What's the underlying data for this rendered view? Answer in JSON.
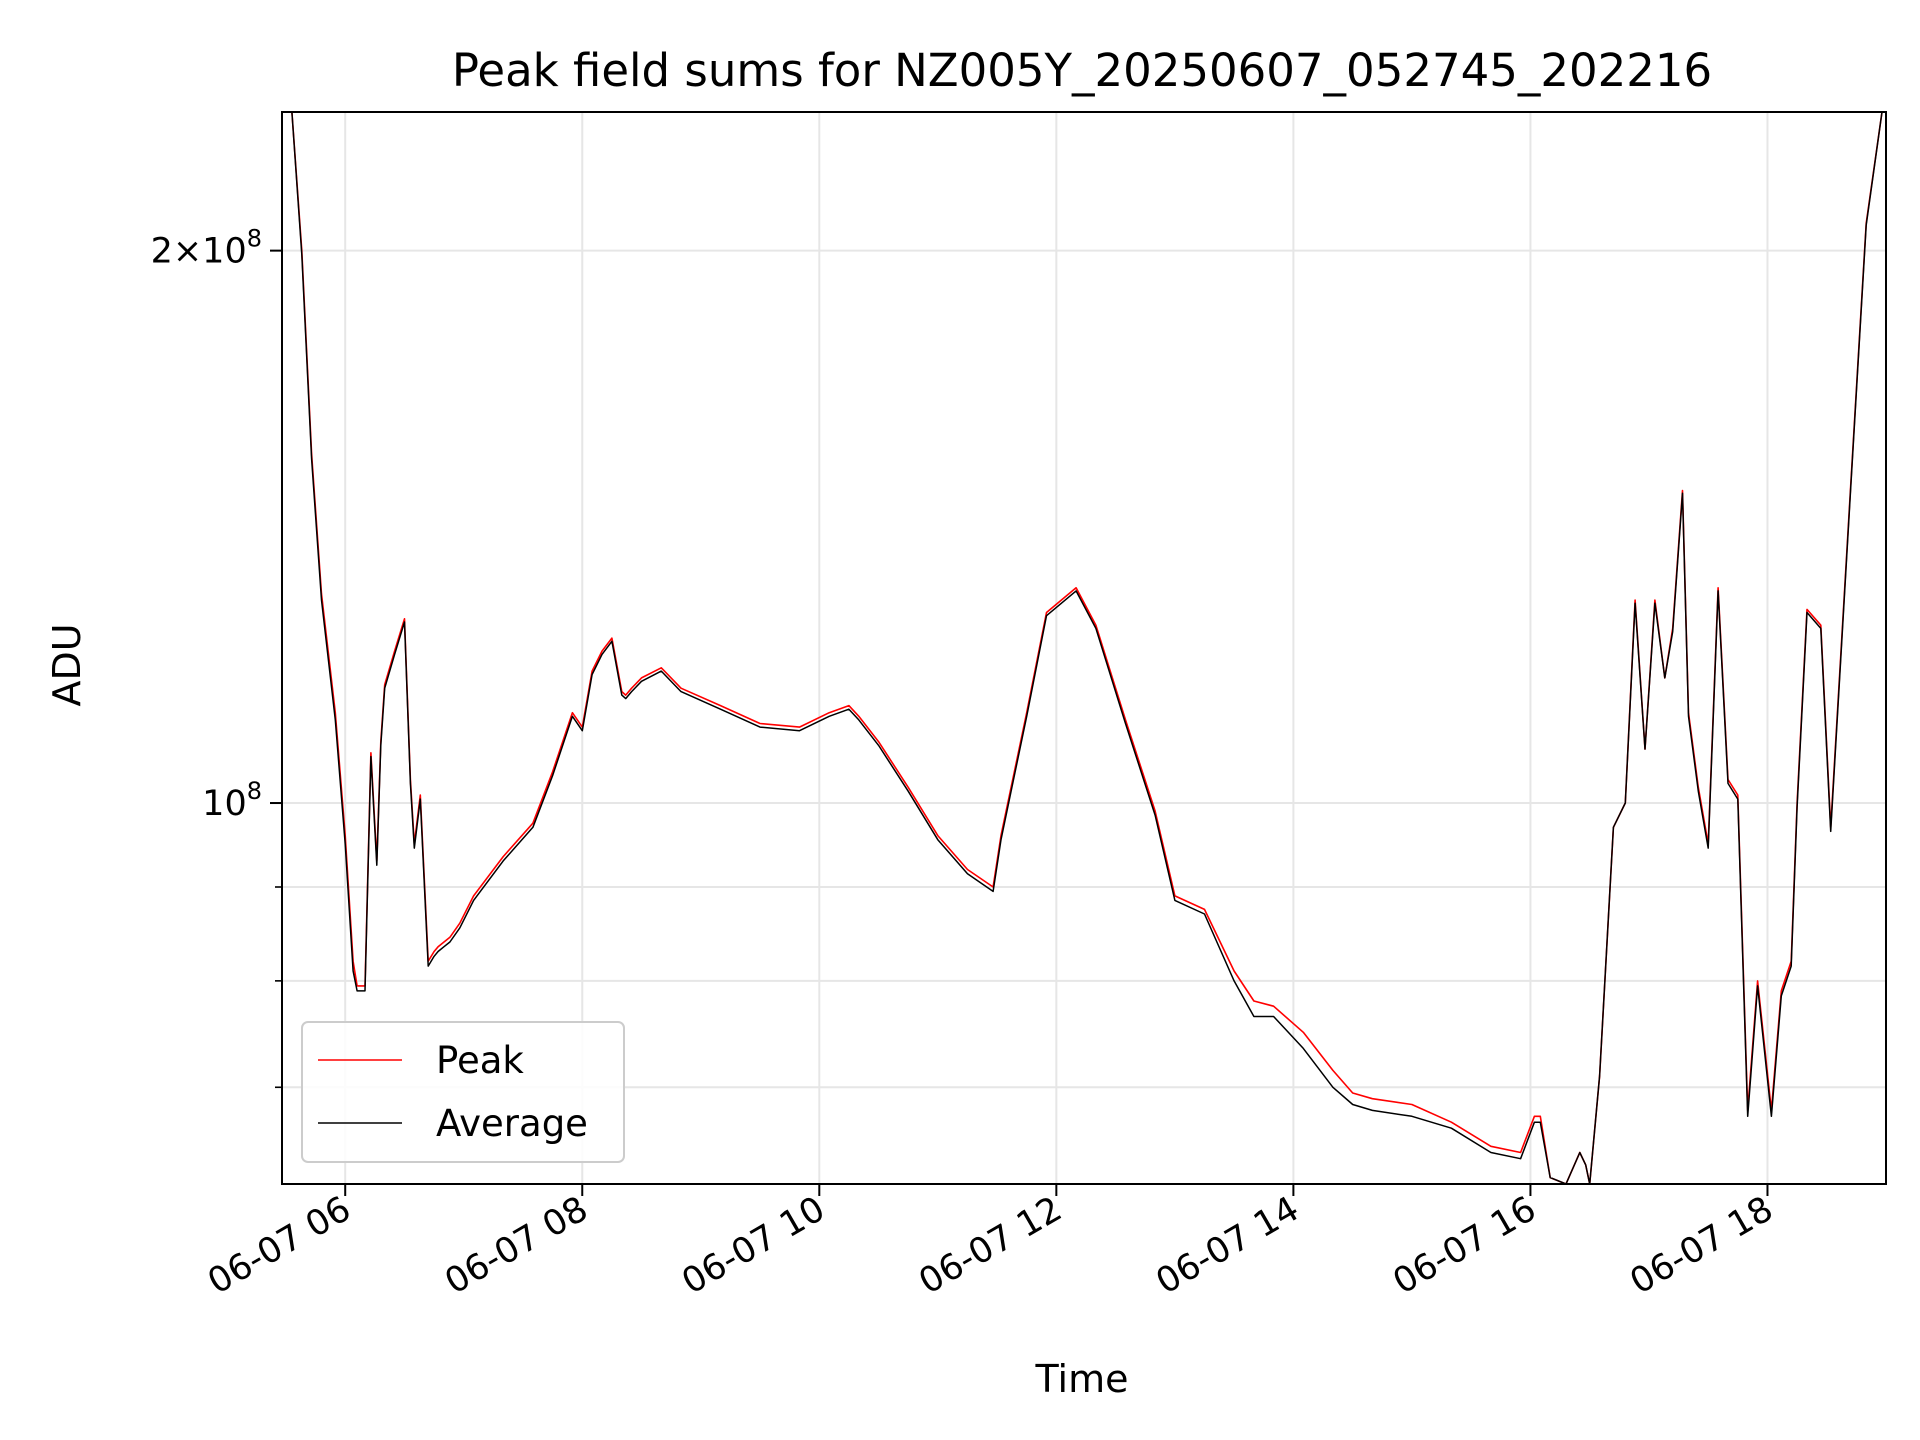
{
  "chart_data": {
    "type": "line",
    "title": "Peak field sums for NZ005Y_20250607_052745_202216",
    "xlabel": "Time",
    "ylabel": "ADU",
    "yscale": "log",
    "xlim": [
      "06-07 05:28",
      "06-07 19:00"
    ],
    "ylim": [
      62000000,
      238000000
    ],
    "grid": true,
    "legend_position": "lower-left",
    "x_ticks": [
      "06-07 06",
      "06-07 08",
      "06-07 10",
      "06-07 12",
      "06-07 14",
      "06-07 16",
      "06-07 18"
    ],
    "y_ticks": [
      {
        "value": 200000000,
        "label": "2×10^8"
      },
      {
        "value": 100000000,
        "label": "10^8"
      }
    ],
    "y_minor_ticks": [
      70000000,
      80000000,
      90000000
    ],
    "series": [
      {
        "name": "Peak",
        "color": "#ff0000",
        "x": [
          "05:29",
          "05:33",
          "05:38",
          "05:43",
          "05:48",
          "05:55",
          "06:00",
          "06:04",
          "06:06",
          "06:10",
          "06:13",
          "06:16",
          "06:18",
          "06:20",
          "06:25",
          "06:30",
          "06:33",
          "06:35",
          "06:38",
          "06:42",
          "06:45",
          "06:47",
          "06:50",
          "06:53",
          "06:58",
          "07:05",
          "07:20",
          "07:35",
          "07:45",
          "07:55",
          "08:00",
          "08:05",
          "08:10",
          "08:15",
          "08:20",
          "08:22",
          "08:25",
          "08:30",
          "08:40",
          "08:50",
          "09:10",
          "09:30",
          "09:50",
          "10:05",
          "10:15",
          "10:20",
          "10:30",
          "10:45",
          "11:00",
          "11:15",
          "11:28",
          "11:32",
          "11:45",
          "11:55",
          "12:10",
          "12:20",
          "12:35",
          "12:50",
          "13:00",
          "13:15",
          "13:30",
          "13:40",
          "13:50",
          "14:05",
          "14:20",
          "14:30",
          "14:40",
          "15:00",
          "15:20",
          "15:40",
          "15:55",
          "16:02",
          "16:05",
          "16:10",
          "16:18",
          "16:25",
          "16:28",
          "16:30",
          "16:35",
          "16:42",
          "16:48",
          "16:53",
          "16:58",
          "17:03",
          "17:08",
          "17:12",
          "17:17",
          "17:20",
          "17:25",
          "17:30",
          "17:35",
          "17:40",
          "17:45",
          "17:50",
          "17:55",
          "18:02",
          "18:07",
          "18:12",
          "18:15",
          "18:20",
          "18:27",
          "18:32",
          "18:42",
          "18:50",
          "18:58"
        ],
        "values": [
          238000000,
          238000000,
          200000000,
          155000000,
          130000000,
          112000000,
          96000000,
          82000000,
          79500000,
          79500000,
          106500000,
          93000000,
          108000000,
          116000000,
          121000000,
          126000000,
          103000000,
          95000000,
          101000000,
          82000000,
          83000000,
          83500000,
          84000000,
          84500000,
          86000000,
          89000000,
          93500000,
          97500000,
          104000000,
          112000000,
          110000000,
          118000000,
          121000000,
          123000000,
          115000000,
          114500000,
          115500000,
          117000000,
          118500000,
          115500000,
          113000000,
          110500000,
          110000000,
          112000000,
          113000000,
          111500000,
          108000000,
          102000000,
          96000000,
          92000000,
          90000000,
          96000000,
          112000000,
          127000000,
          131000000,
          125000000,
          111000000,
          99000000,
          89000000,
          87500000,
          81000000,
          78000000,
          77500000,
          75000000,
          71500000,
          69500000,
          69000000,
          68500000,
          67000000,
          65000000,
          64500000,
          67500000,
          67500000,
          62500000,
          62000000,
          64500000,
          63500000,
          62000000,
          71000000,
          97000000,
          100000000,
          129000000,
          107000000,
          129000000,
          117000000,
          124500000,
          148000000,
          112000000,
          102000000,
          95000000,
          131000000,
          103000000,
          101000000,
          68000000,
          80000000,
          68000000,
          79000000,
          82000000,
          100000000,
          127500000,
          125000000,
          97000000,
          148000000,
          207000000,
          238000000
        ]
      },
      {
        "name": "Average",
        "color": "#000000",
        "x": [
          "05:29",
          "05:33",
          "05:38",
          "05:43",
          "05:48",
          "05:55",
          "06:00",
          "06:04",
          "06:06",
          "06:10",
          "06:13",
          "06:16",
          "06:18",
          "06:20",
          "06:25",
          "06:30",
          "06:33",
          "06:35",
          "06:38",
          "06:42",
          "06:45",
          "06:47",
          "06:50",
          "06:53",
          "06:58",
          "07:05",
          "07:20",
          "07:35",
          "07:45",
          "07:55",
          "08:00",
          "08:05",
          "08:10",
          "08:15",
          "08:20",
          "08:22",
          "08:25",
          "08:30",
          "08:40",
          "08:50",
          "09:10",
          "09:30",
          "09:50",
          "10:05",
          "10:15",
          "10:20",
          "10:30",
          "10:45",
          "11:00",
          "11:15",
          "11:28",
          "11:32",
          "11:45",
          "11:55",
          "12:10",
          "12:20",
          "12:35",
          "12:50",
          "13:00",
          "13:15",
          "13:30",
          "13:40",
          "13:50",
          "14:05",
          "14:20",
          "14:30",
          "14:40",
          "15:00",
          "15:20",
          "15:40",
          "15:55",
          "16:02",
          "16:05",
          "16:10",
          "16:18",
          "16:25",
          "16:28",
          "16:30",
          "16:35",
          "16:42",
          "16:48",
          "16:53",
          "16:58",
          "17:03",
          "17:08",
          "17:12",
          "17:17",
          "17:20",
          "17:25",
          "17:30",
          "17:35",
          "17:40",
          "17:45",
          "17:50",
          "17:55",
          "18:02",
          "18:07",
          "18:12",
          "18:15",
          "18:20",
          "18:27",
          "18:32",
          "18:42",
          "18:50",
          "18:58"
        ],
        "values": [
          238000000,
          238000000,
          199000000,
          154000000,
          129000000,
          111000000,
          95000000,
          81000000,
          79000000,
          79000000,
          106000000,
          92500000,
          107500000,
          115500000,
          120500000,
          125500000,
          102500000,
          94500000,
          100500000,
          81500000,
          82500000,
          83000000,
          83500000,
          84000000,
          85500000,
          88500000,
          93000000,
          97000000,
          103500000,
          111500000,
          109500000,
          117500000,
          120500000,
          122500000,
          114500000,
          114000000,
          115000000,
          116500000,
          118000000,
          115000000,
          112500000,
          110000000,
          109500000,
          111500000,
          112500000,
          111000000,
          107500000,
          101500000,
          95500000,
          91500000,
          89500000,
          95500000,
          111500000,
          126500000,
          130500000,
          124500000,
          110500000,
          98500000,
          88500000,
          87000000,
          80000000,
          76500000,
          76500000,
          73500000,
          70000000,
          68500000,
          68000000,
          67500000,
          66500000,
          64500000,
          64000000,
          67000000,
          67000000,
          62500000,
          62000000,
          64500000,
          63500000,
          62000000,
          71000000,
          97000000,
          100000000,
          128500000,
          107000000,
          128500000,
          117000000,
          124000000,
          147500000,
          111500000,
          101500000,
          94500000,
          130500000,
          102500000,
          100500000,
          67500000,
          79500000,
          67500000,
          78500000,
          81500000,
          99500000,
          127000000,
          124500000,
          96500000,
          147500000,
          206500000,
          238000000
        ]
      }
    ]
  }
}
